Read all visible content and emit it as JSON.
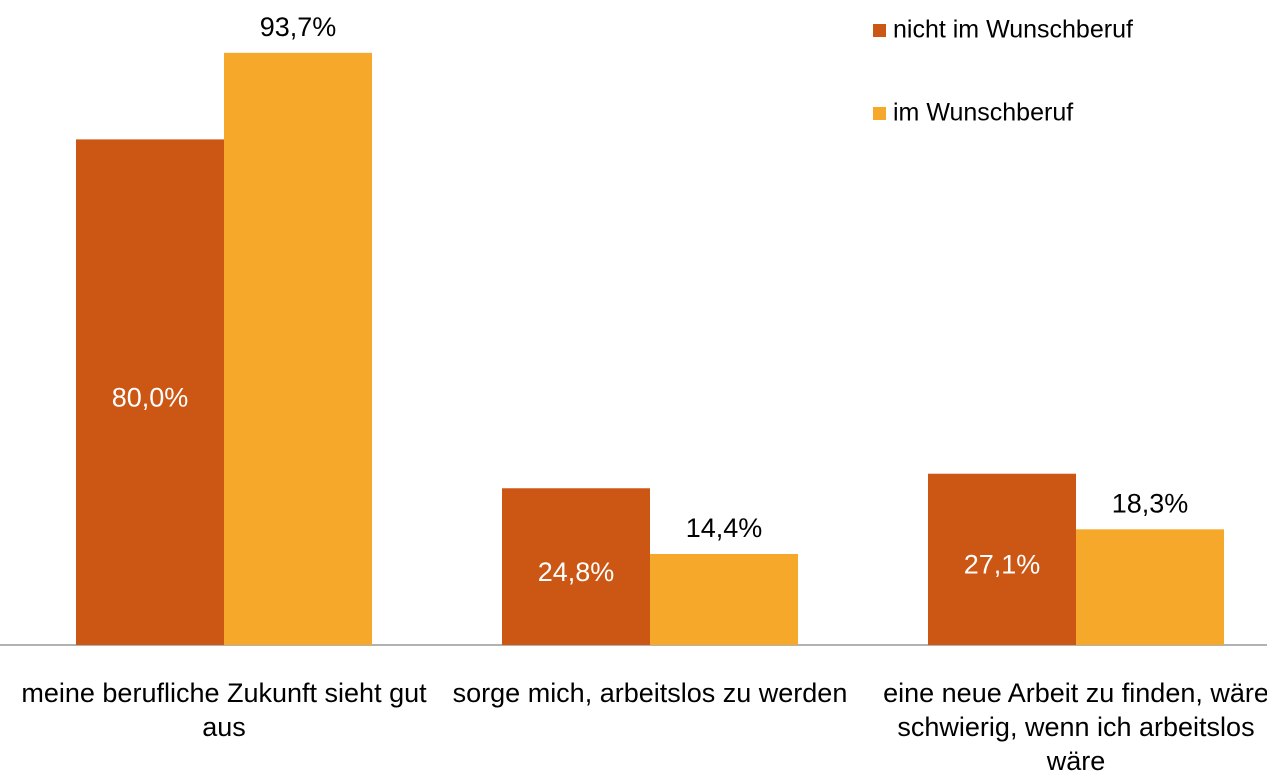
{
  "chart_data": {
    "type": "bar",
    "categories": [
      "meine berufliche Zukunft sieht gut aus",
      "sorge mich, arbeitslos zu werden",
      "eine neue Arbeit zu finden, wäre schwierig, wenn ich arbeitslos wäre"
    ],
    "series": [
      {
        "name": "nicht im Wunschberuf",
        "color": "#cc5614",
        "values": [
          80.0,
          24.8,
          27.1
        ],
        "value_labels": [
          "80,0%",
          "24,8%",
          "27,1%"
        ]
      },
      {
        "name": "im Wunschberuf",
        "color": "#f5a82a",
        "values": [
          93.7,
          14.4,
          18.3
        ],
        "value_labels": [
          "93,7%",
          "14,4%",
          "18,3%"
        ]
      }
    ],
    "ylim": [
      0,
      100
    ]
  }
}
